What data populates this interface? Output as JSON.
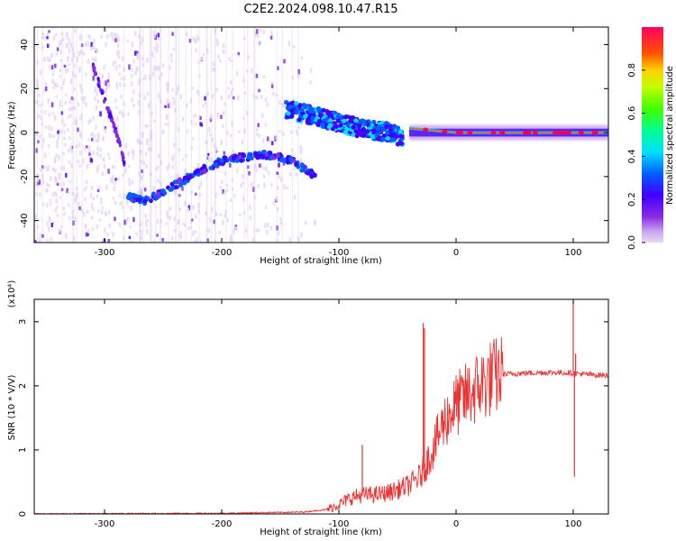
{
  "title": "C2E2.2024.098.10.47.R15",
  "chart_data": [
    {
      "type": "heatmap",
      "xlabel": "Height of straight line (km)",
      "ylabel": "Frequency (Hz)",
      "xlim": [
        -360,
        130
      ],
      "ylim": [
        -50,
        48
      ],
      "x_ticks": [
        -300,
        -200,
        -100,
        0,
        100
      ],
      "y_ticks": [
        -40,
        -20,
        0,
        20,
        40
      ],
      "colorbar": {
        "label": "Normalized spectral amplitude",
        "range": [
          0,
          1
        ],
        "ticks": [
          "0.0",
          "0.2",
          "0.4",
          "0.6",
          "0.8"
        ],
        "colors": [
          "#e9d8f8",
          "#8a2be2",
          "#4000ff",
          "#0060ff",
          "#00e0ff",
          "#00ff40",
          "#c0ff00",
          "#ffd000",
          "#ff4000",
          "#ff0060"
        ]
      },
      "features": {
        "main_ridge": {
          "x": [
            -40,
            -20,
            0,
            20,
            40,
            60,
            80,
            100,
            130
          ],
          "y": [
            2,
            1,
            0,
            0,
            0,
            0,
            0,
            0,
            0
          ],
          "amplitude": 0.75
        },
        "descending_band": {
          "x": [
            -145,
            -130,
            -110,
            -90,
            -70,
            -55,
            -45
          ],
          "y": [
            10,
            9,
            6,
            3,
            1,
            0,
            -3
          ],
          "amplitude": 0.45
        },
        "low_arc": {
          "x": [
            -280,
            -265,
            -240,
            -220,
            -200,
            -180,
            -160,
            -140,
            -120
          ],
          "y": [
            -29,
            -31,
            -24,
            -18,
            -13,
            -11,
            -10,
            -13,
            -20
          ],
          "amplitude": 0.4
        },
        "diagonal_streak": {
          "x": [
            -310,
            -300,
            -290,
            -283
          ],
          "y": [
            30,
            15,
            0,
            -14
          ],
          "amplitude": 0.25
        }
      }
    },
    {
      "type": "line",
      "xlabel": "Height of straight line (km)",
      "ylabel": "SNR (10 * V/V)",
      "y_multiplier": "(x10⁴)",
      "xlim": [
        -360,
        130
      ],
      "ylim": [
        0,
        3.35
      ],
      "x_ticks": [
        -300,
        -200,
        -100,
        0,
        100
      ],
      "y_ticks": [
        0,
        1,
        2,
        3
      ],
      "color": "#ee3333",
      "envelope_x": [
        -360,
        -200,
        -130,
        -110,
        -100,
        -90,
        -80,
        -70,
        -60,
        -50,
        -40,
        -30,
        -20,
        -10,
        0,
        10,
        20,
        30,
        40,
        60,
        80,
        100,
        110,
        130
      ],
      "envelope_y": [
        0.0,
        0.01,
        0.03,
        0.07,
        0.15,
        0.25,
        0.3,
        0.3,
        0.32,
        0.38,
        0.45,
        0.6,
        1.0,
        1.45,
        1.7,
        1.85,
        2.0,
        2.12,
        2.18,
        2.2,
        2.21,
        2.2,
        2.18,
        2.16
      ],
      "spikes_x": [
        -80,
        -28,
        -27,
        100,
        101,
        102
      ],
      "spikes_y": [
        1.08,
        2.98,
        2.9,
        3.32,
        0.58,
        2.5
      ]
    }
  ]
}
